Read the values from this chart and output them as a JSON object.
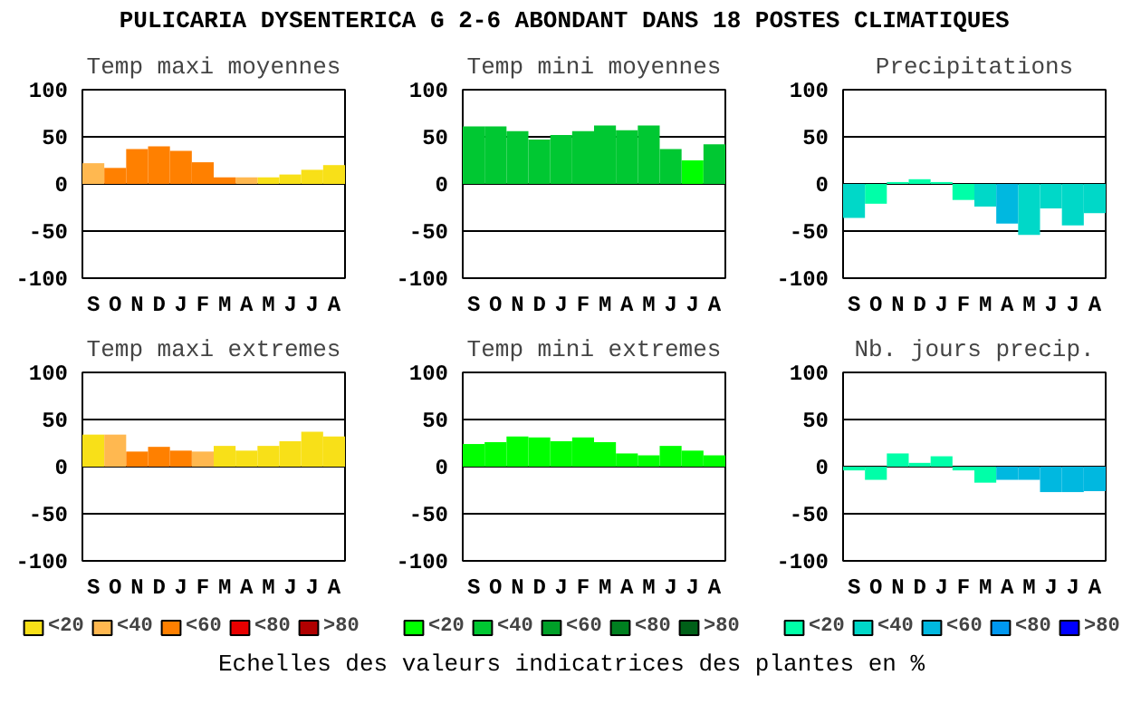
{
  "chart_data": [
    {
      "type": "other",
      "title": "PULICARIA DYSENTERICA G 2-6 ABONDANT DANS  18 POSTES CLIMATIQUES"
    },
    {
      "type": "bar",
      "title": "Temp maxi moyennes",
      "categories": [
        "S",
        "O",
        "N",
        "D",
        "J",
        "F",
        "M",
        "A",
        "M",
        "J",
        "J",
        "A"
      ],
      "ylim": [
        -100,
        100
      ],
      "yticks": [
        -100,
        -50,
        0,
        50,
        100
      ],
      "grid": "y",
      "series": [
        {
          "color": "#f8e018",
          "values": [
            null,
            null,
            null,
            null,
            null,
            null,
            null,
            null,
            7,
            10,
            15,
            20
          ]
        },
        {
          "color": "#ffb850",
          "values": [
            22,
            null,
            null,
            null,
            null,
            null,
            null,
            7,
            null,
            null,
            null,
            null
          ]
        },
        {
          "color": "#ff8000",
          "values": [
            null,
            17,
            37,
            40,
            35,
            23,
            7,
            null,
            null,
            null,
            null,
            null
          ]
        }
      ]
    },
    {
      "type": "bar",
      "title": "Temp mini moyennes",
      "categories": [
        "S",
        "O",
        "N",
        "D",
        "J",
        "F",
        "M",
        "A",
        "M",
        "J",
        "J",
        "A"
      ],
      "ylim": [
        -100,
        100
      ],
      "yticks": [
        -100,
        -50,
        0,
        50,
        100
      ],
      "grid": "y",
      "series": [
        {
          "color": "#00ff00",
          "values": [
            null,
            null,
            null,
            null,
            null,
            null,
            null,
            null,
            null,
            null,
            25,
            null
          ]
        },
        {
          "color": "#00c832",
          "values": [
            61,
            61,
            56,
            47,
            52,
            56,
            62,
            57,
            62,
            37,
            null,
            42
          ]
        }
      ]
    },
    {
      "type": "bar",
      "title": "Precipitations",
      "categories": [
        "S",
        "O",
        "N",
        "D",
        "J",
        "F",
        "M",
        "A",
        "M",
        "J",
        "J",
        "A"
      ],
      "ylim": [
        -100,
        100
      ],
      "yticks": [
        -100,
        -50,
        0,
        50,
        100
      ],
      "grid": "y",
      "series": [
        {
          "color": "#00ffa8",
          "values": [
            null,
            -21,
            2,
            5,
            2,
            -17,
            null,
            null,
            null,
            null,
            null,
            null
          ]
        },
        {
          "color": "#00d8c8",
          "values": [
            -36,
            null,
            null,
            null,
            null,
            null,
            -24,
            null,
            -54,
            -26,
            -44,
            -31
          ]
        },
        {
          "color": "#00b8e0",
          "values": [
            null,
            null,
            null,
            null,
            null,
            null,
            null,
            -42,
            null,
            null,
            null,
            null
          ]
        }
      ]
    },
    {
      "type": "bar",
      "title": "Temp maxi extremes",
      "categories": [
        "S",
        "O",
        "N",
        "D",
        "J",
        "F",
        "M",
        "A",
        "M",
        "J",
        "J",
        "A"
      ],
      "ylim": [
        -100,
        100
      ],
      "yticks": [
        -100,
        -50,
        0,
        50,
        100
      ],
      "grid": "y",
      "legend": "bottom",
      "series": [
        {
          "name": "<20",
          "color": "#f8e018",
          "values": [
            34,
            null,
            null,
            null,
            null,
            null,
            22,
            17,
            22,
            27,
            37,
            32
          ]
        },
        {
          "name": "<40",
          "color": "#ffb850",
          "values": [
            null,
            34,
            null,
            null,
            null,
            16,
            null,
            null,
            null,
            null,
            null,
            null
          ]
        },
        {
          "name": "<60",
          "color": "#ff8000",
          "values": [
            null,
            null,
            16,
            21,
            17,
            null,
            null,
            null,
            null,
            null,
            null,
            null
          ]
        },
        {
          "name": "<80",
          "color": "#e80000",
          "values": [
            null,
            null,
            null,
            null,
            null,
            null,
            null,
            null,
            null,
            null,
            null,
            null
          ]
        },
        {
          "name": ">80",
          "color": "#b00000",
          "values": [
            null,
            null,
            null,
            null,
            null,
            null,
            null,
            null,
            null,
            null,
            null,
            null
          ]
        }
      ]
    },
    {
      "type": "bar",
      "title": "Temp mini extremes",
      "categories": [
        "S",
        "O",
        "N",
        "D",
        "J",
        "F",
        "M",
        "A",
        "M",
        "J",
        "J",
        "A"
      ],
      "ylim": [
        -100,
        100
      ],
      "yticks": [
        -100,
        -50,
        0,
        50,
        100
      ],
      "grid": "y",
      "legend": "bottom",
      "series": [
        {
          "name": "<20",
          "color": "#00ff00",
          "values": [
            24,
            26,
            32,
            31,
            27,
            31,
            26,
            14,
            12,
            22,
            17,
            12
          ]
        },
        {
          "name": "<40",
          "color": "#00c832",
          "values": [
            null,
            null,
            null,
            null,
            null,
            null,
            null,
            null,
            null,
            null,
            null,
            null
          ]
        },
        {
          "name": "<60",
          "color": "#00a028",
          "values": [
            null,
            null,
            null,
            null,
            null,
            null,
            null,
            null,
            null,
            null,
            null,
            null
          ]
        },
        {
          "name": "<80",
          "color": "#008020",
          "values": [
            null,
            null,
            null,
            null,
            null,
            null,
            null,
            null,
            null,
            null,
            null,
            null
          ]
        },
        {
          "name": ">80",
          "color": "#006018",
          "values": [
            null,
            null,
            null,
            null,
            null,
            null,
            null,
            null,
            null,
            null,
            null,
            null
          ]
        }
      ]
    },
    {
      "type": "bar",
      "title": "Nb. jours precip.",
      "categories": [
        "S",
        "O",
        "N",
        "D",
        "J",
        "F",
        "M",
        "A",
        "M",
        "J",
        "J",
        "A"
      ],
      "ylim": [
        -100,
        100
      ],
      "yticks": [
        -100,
        -50,
        0,
        50,
        100
      ],
      "grid": "y",
      "legend": "bottom",
      "series": [
        {
          "name": "<20",
          "color": "#00ffa8",
          "values": [
            -4,
            -14,
            14,
            4,
            11,
            -4,
            -17,
            null,
            null,
            null,
            null,
            null
          ]
        },
        {
          "name": "<40",
          "color": "#00d8c8",
          "values": [
            null,
            null,
            null,
            null,
            null,
            null,
            null,
            null,
            null,
            null,
            null,
            null
          ]
        },
        {
          "name": "<60",
          "color": "#00b8e0",
          "values": [
            null,
            null,
            null,
            null,
            null,
            null,
            null,
            -14,
            -14,
            -27,
            -27,
            -26
          ]
        },
        {
          "name": "<80",
          "color": "#0098f0",
          "values": [
            null,
            null,
            null,
            null,
            null,
            null,
            null,
            null,
            null,
            null,
            null,
            null
          ]
        },
        {
          "name": ">80",
          "color": "#0000ff",
          "values": [
            null,
            null,
            null,
            null,
            null,
            null,
            null,
            null,
            null,
            null,
            null,
            null
          ]
        }
      ]
    },
    {
      "type": "other",
      "annotations": [
        "Echelles des valeurs indicatrices des plantes en %"
      ]
    }
  ]
}
